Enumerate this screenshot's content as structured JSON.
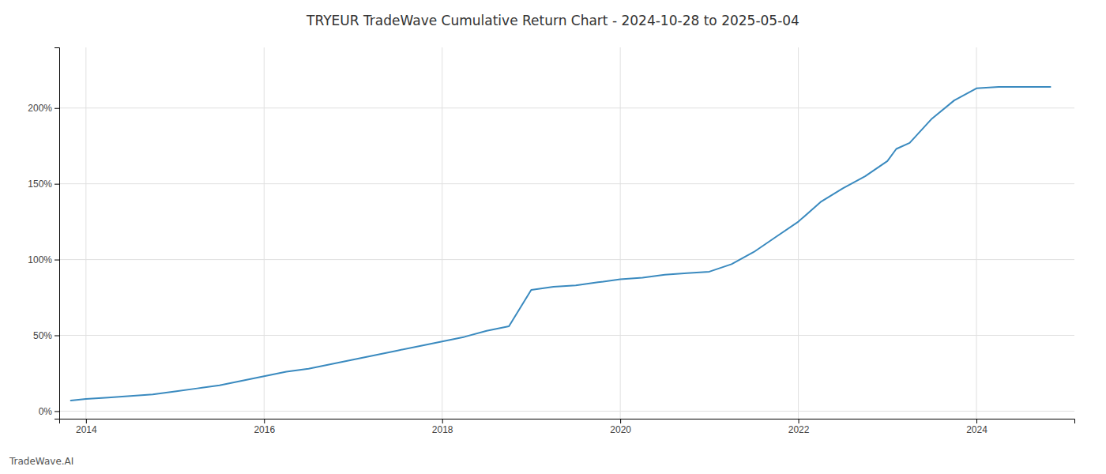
{
  "chart_data": {
    "type": "line",
    "title": "TRYEUR TradeWave Cumulative Return Chart - 2024-10-28 to 2025-05-04",
    "annotations": [
      "TradeWave.AI"
    ],
    "color": "#3a8abf",
    "grid": true,
    "x": [
      2013.83,
      2014.0,
      2014.25,
      2014.5,
      2014.75,
      2015.0,
      2015.25,
      2015.5,
      2015.75,
      2016.0,
      2016.25,
      2016.5,
      2016.75,
      2017.0,
      2017.25,
      2017.5,
      2017.75,
      2018.0,
      2018.25,
      2018.5,
      2018.75,
      2019.0,
      2019.25,
      2019.5,
      2019.75,
      2020.0,
      2020.25,
      2020.5,
      2020.75,
      2021.0,
      2021.25,
      2021.5,
      2021.75,
      2022.0,
      2022.25,
      2022.5,
      2022.75,
      2023.0,
      2023.1,
      2023.25,
      2023.5,
      2023.75,
      2024.0,
      2024.25,
      2024.5,
      2024.83
    ],
    "values": [
      0.07,
      0.08,
      0.09,
      0.1,
      0.11,
      0.13,
      0.15,
      0.17,
      0.2,
      0.23,
      0.26,
      0.28,
      0.31,
      0.34,
      0.37,
      0.4,
      0.43,
      0.46,
      0.49,
      0.53,
      0.56,
      0.8,
      0.82,
      0.83,
      0.85,
      0.87,
      0.88,
      0.9,
      0.91,
      0.92,
      0.97,
      1.05,
      1.15,
      1.25,
      1.38,
      1.47,
      1.55,
      1.65,
      1.73,
      1.77,
      1.93,
      2.05,
      2.13,
      2.14,
      2.14,
      2.14
    ],
    "xlim": [
      2013.7,
      2025.1
    ],
    "ylim": [
      -0.05,
      2.4
    ],
    "xticks": [
      2014,
      2016,
      2018,
      2020,
      2022,
      2024
    ],
    "yticks": [
      {
        "value": 0.0,
        "label": "0%"
      },
      {
        "value": 0.5,
        "label": "50%"
      },
      {
        "value": 1.0,
        "label": "100%"
      },
      {
        "value": 1.5,
        "label": "150%"
      },
      {
        "value": 2.0,
        "label": "200%"
      }
    ]
  }
}
